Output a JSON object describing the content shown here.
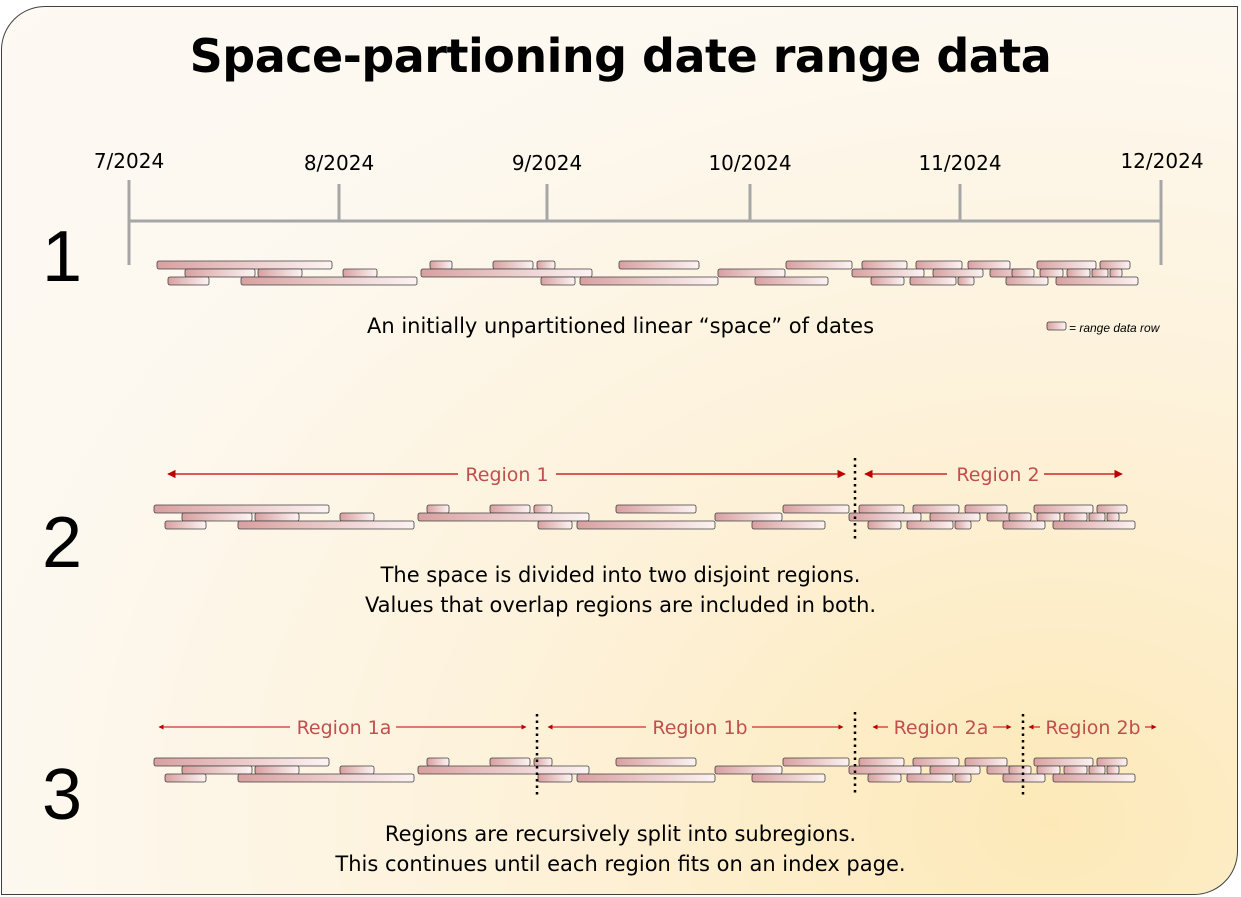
{
  "title": "Space-partioning date range data",
  "steps": [
    {
      "number": "1",
      "caption_lines": [
        "An initially unpartitioned linear “space” of dates"
      ]
    },
    {
      "number": "2",
      "caption_lines": [
        "The space is divided into two disjoint regions.",
        "Values that overlap regions are included in both."
      ]
    },
    {
      "number": "3",
      "caption_lines": [
        "Regions are recursively split into subregions.",
        "This continues until each region fits on an index page."
      ]
    }
  ],
  "axis": {
    "ticks": [
      "7/2024",
      "8/2024",
      "9/2024",
      "10/2024",
      "11/2024",
      "12/2024"
    ]
  },
  "legend": {
    "label": "= range data row"
  },
  "regions_level1": [
    "Region 1",
    "Region 2"
  ],
  "regions_level2": [
    "Region 1a",
    "Region 1b",
    "Region 2a",
    "Region 2b"
  ],
  "colors": {
    "bar_fill_dark": "#d9a0a0",
    "bar_fill_light": "#fdf3f3",
    "bar_stroke": "#404040",
    "arrow": "#c00000",
    "region_text": "#c0504d",
    "axis": "#a6a6a6"
  }
}
